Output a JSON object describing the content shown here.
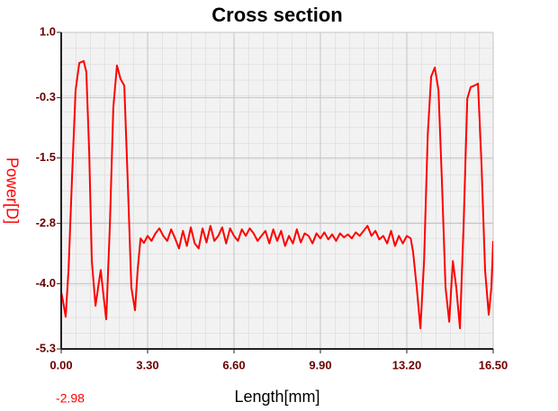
{
  "chart_data": {
    "type": "line",
    "title": "Cross section",
    "xlabel": "Length[mm]",
    "ylabel": "Power[D]",
    "annotation": "-2.98",
    "color": "#ff0000",
    "grid": true,
    "xlim": [
      0,
      16.5
    ],
    "ylim": [
      -5.3,
      1
    ],
    "xticks": [
      {
        "value": 0,
        "label": "0.00"
      },
      {
        "value": 3.3,
        "label": "3.30"
      },
      {
        "value": 6.6,
        "label": "6.60"
      },
      {
        "value": 9.9,
        "label": "9.90"
      },
      {
        "value": 13.2,
        "label": "13.20"
      },
      {
        "value": 16.5,
        "label": "16.50"
      }
    ],
    "yticks": [
      {
        "value": 1,
        "label": "1.0"
      },
      -0.3,
      -1.5,
      -2.8,
      {
        "value": -4,
        "label": "-4.0"
      },
      -5.3
    ],
    "x": [
      0,
      0.07,
      0.17,
      0.28,
      0.41,
      0.55,
      0.69,
      0.86,
      0.96,
      1.07,
      1.17,
      1.31,
      1.41,
      1.51,
      1.62,
      1.72,
      1.86,
      1.99,
      2.13,
      2.27,
      2.41,
      2.54,
      2.68,
      2.82,
      2.92,
      3.03,
      3.16,
      3.3,
      3.45,
      3.6,
      3.75,
      3.9,
      4.05,
      4.2,
      4.35,
      4.5,
      4.65,
      4.8,
      4.95,
      5.1,
      5.25,
      5.4,
      5.55,
      5.7,
      5.85,
      6.0,
      6.15,
      6.3,
      6.45,
      6.6,
      6.75,
      6.9,
      7.05,
      7.2,
      7.35,
      7.5,
      7.65,
      7.8,
      7.95,
      8.1,
      8.25,
      8.4,
      8.55,
      8.7,
      8.85,
      9.0,
      9.15,
      9.3,
      9.45,
      9.6,
      9.75,
      9.9,
      10.05,
      10.2,
      10.35,
      10.5,
      10.65,
      10.8,
      10.95,
      11.1,
      11.25,
      11.4,
      11.55,
      11.7,
      11.85,
      12.0,
      12.15,
      12.3,
      12.45,
      12.6,
      12.75,
      12.9,
      13.05,
      13.2,
      13.35,
      13.44,
      13.58,
      13.72,
      13.86,
      14.0,
      14.13,
      14.27,
      14.41,
      14.54,
      14.68,
      14.82,
      14.96,
      15.09,
      15.23,
      15.37,
      15.51,
      15.64,
      15.78,
      15.92,
      16.05,
      16.19,
      16.33,
      16.43,
      16.5
    ],
    "values": [
      -4.17,
      -4.35,
      -4.66,
      -3.73,
      -1.94,
      -0.15,
      0.39,
      0.43,
      0.21,
      -1.4,
      -3.55,
      -4.44,
      -4.08,
      -3.73,
      -4.26,
      -4.71,
      -2.83,
      -0.5,
      0.34,
      0.07,
      -0.06,
      -1.94,
      -4.08,
      -4.53,
      -3.73,
      -3.1,
      -3.19,
      -3.05,
      -3.15,
      -3.0,
      -2.9,
      -3.05,
      -3.15,
      -2.92,
      -3.1,
      -3.3,
      -2.95,
      -3.25,
      -2.88,
      -3.2,
      -3.3,
      -2.9,
      -3.18,
      -2.85,
      -3.15,
      -3.05,
      -2.88,
      -3.2,
      -2.9,
      -3.05,
      -3.15,
      -2.92,
      -3.05,
      -2.9,
      -3.0,
      -3.15,
      -3.05,
      -2.95,
      -3.2,
      -2.92,
      -3.15,
      -2.95,
      -3.25,
      -3.05,
      -3.2,
      -2.92,
      -3.18,
      -3.0,
      -3.05,
      -3.2,
      -3.0,
      -3.1,
      -2.98,
      -3.12,
      -3.02,
      -3.15,
      -3.0,
      -3.08,
      -3.02,
      -3.1,
      -2.98,
      -3.05,
      -2.95,
      -2.85,
      -3.05,
      -2.95,
      -3.12,
      -3.05,
      -3.2,
      -2.95,
      -3.25,
      -3.05,
      -3.2,
      -3.05,
      -3.1,
      -3.37,
      -4.08,
      -4.89,
      -3.55,
      -1.04,
      0.12,
      0.3,
      -0.15,
      -1.94,
      -4.08,
      -4.76,
      -3.55,
      -4.08,
      -4.89,
      -2.83,
      -0.32,
      -0.09,
      -0.06,
      -0.02,
      -1.58,
      -3.73,
      -4.62,
      -4.08,
      -3.15
    ]
  }
}
